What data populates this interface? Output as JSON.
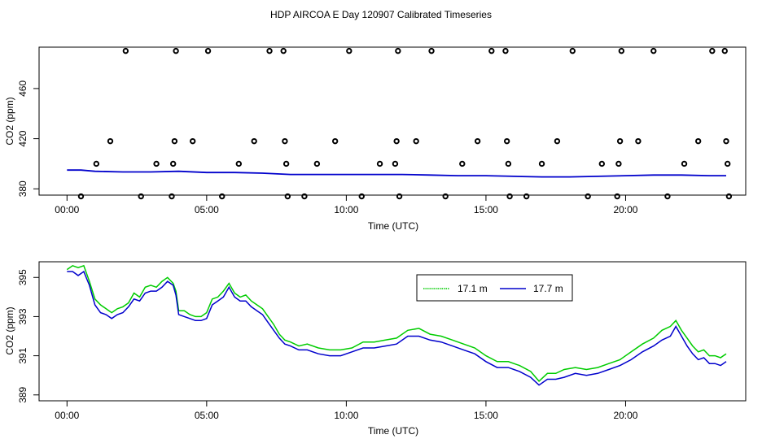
{
  "chart_data": [
    {
      "type": "scatter",
      "title": "HDP AIRCOA E  Day 120907  Calibrated Timeseries",
      "xlabel": "Time (UTC)",
      "ylabel": "CO2 (ppm)",
      "x_tick_labels": [
        "00:00",
        "05:00",
        "10:00",
        "15:00",
        "20:00"
      ],
      "x_ticks_hours": [
        0,
        5,
        10,
        15,
        20
      ],
      "y_tick_labels": [
        "380",
        "420",
        "460"
      ],
      "y_ticks": [
        380,
        420,
        460
      ],
      "xlim_hours": [
        -1.0,
        24.3
      ],
      "ylim": [
        375,
        493
      ],
      "grid": false,
      "calibration_points": {
        "x": [
          0.5,
          1.05,
          1.55,
          2.1,
          2.65,
          3.2,
          3.75,
          3.8,
          3.85,
          3.9,
          4.5,
          5.05,
          5.55,
          6.15,
          6.7,
          7.25,
          7.75,
          7.8,
          7.85,
          7.9,
          8.5,
          8.95,
          9.6,
          10.1,
          10.55,
          11.2,
          11.75,
          11.8,
          11.85,
          11.9,
          12.5,
          13.05,
          13.55,
          14.15,
          14.7,
          15.2,
          15.7,
          15.75,
          15.8,
          15.85,
          16.45,
          17.0,
          17.55,
          18.1,
          18.65,
          19.15,
          19.7,
          19.75,
          19.8,
          19.85,
          20.45,
          21.0,
          21.5,
          22.1,
          22.6,
          23.1,
          23.55,
          23.6,
          23.65,
          23.7
        ],
        "y": [
          374,
          400,
          418,
          490,
          374,
          400,
          374,
          400,
          418,
          490,
          418,
          490,
          374,
          400,
          418,
          490,
          490,
          418,
          400,
          374,
          374,
          400,
          418,
          490,
          374,
          400,
          400,
          418,
          490,
          374,
          418,
          490,
          374,
          400,
          418,
          490,
          490,
          418,
          400,
          374,
          374,
          400,
          418,
          490,
          374,
          400,
          374,
          400,
          418,
          490,
          418,
          490,
          374,
          400,
          418,
          490,
          490,
          418,
          400,
          374
        ]
      },
      "series": [
        {
          "name": "",
          "color": "#0000cc",
          "x": [
            0,
            0.5,
            1.0,
            2.0,
            3.0,
            4.0,
            5.0,
            6.0,
            7.0,
            8.0,
            9.0,
            10.0,
            11.0,
            12.0,
            13.0,
            14.0,
            15.0,
            16.0,
            17.0,
            18.0,
            19.0,
            20.0,
            21.0,
            22.0,
            23.0,
            23.6
          ],
          "values": [
            395,
            395,
            394,
            393.5,
            393.5,
            394,
            393,
            393,
            392.5,
            391.5,
            391.5,
            391.5,
            391.5,
            391.5,
            391,
            390.5,
            390.5,
            390,
            389.5,
            389.5,
            390,
            390.5,
            391,
            391,
            390.5,
            390.5
          ]
        }
      ]
    },
    {
      "type": "line",
      "title": "",
      "xlabel": "Time (UTC)",
      "ylabel": "CO2 (ppm)",
      "x_tick_labels": [
        "00:00",
        "05:00",
        "10:00",
        "15:00",
        "20:00"
      ],
      "x_ticks_hours": [
        0,
        5,
        10,
        15,
        20
      ],
      "y_tick_labels": [
        "389",
        "391",
        "393",
        "395"
      ],
      "y_ticks": [
        389,
        391,
        393,
        395
      ],
      "xlim_hours": [
        -1.0,
        24.3
      ],
      "ylim": [
        388.7,
        395.8
      ],
      "grid": false,
      "legend_position": "top-right",
      "x": [
        0,
        0.2,
        0.4,
        0.6,
        0.8,
        1.0,
        1.2,
        1.4,
        1.6,
        1.8,
        2.0,
        2.2,
        2.4,
        2.6,
        2.8,
        3.0,
        3.2,
        3.4,
        3.6,
        3.8,
        3.9,
        4.0,
        4.2,
        4.4,
        4.6,
        4.8,
        5.0,
        5.2,
        5.4,
        5.6,
        5.8,
        6.0,
        6.2,
        6.4,
        6.6,
        6.8,
        7.0,
        7.2,
        7.4,
        7.6,
        7.8,
        8.0,
        8.3,
        8.6,
        9.0,
        9.4,
        9.8,
        10.2,
        10.6,
        11.0,
        11.4,
        11.8,
        12.2,
        12.6,
        13.0,
        13.4,
        13.8,
        14.2,
        14.6,
        15.0,
        15.4,
        15.8,
        16.2,
        16.6,
        16.9,
        17.2,
        17.5,
        17.8,
        18.2,
        18.6,
        19.0,
        19.4,
        19.8,
        20.2,
        20.6,
        21.0,
        21.3,
        21.6,
        21.8,
        22.0,
        22.2,
        22.4,
        22.6,
        22.8,
        23.0,
        23.2,
        23.4,
        23.6
      ],
      "series": [
        {
          "name": "17.1 m",
          "color": "#00cc00",
          "values": [
            395.4,
            395.6,
            395.5,
            395.6,
            394.8,
            393.9,
            393.6,
            393.4,
            393.2,
            393.4,
            393.5,
            393.7,
            394.2,
            394.0,
            394.5,
            394.6,
            394.5,
            394.8,
            395.0,
            394.7,
            394.3,
            393.3,
            393.3,
            393.1,
            393.0,
            393.0,
            393.2,
            393.9,
            394.0,
            394.3,
            394.7,
            394.2,
            394.0,
            394.1,
            393.8,
            393.6,
            393.4,
            393.0,
            392.6,
            392.1,
            391.8,
            391.7,
            391.5,
            391.6,
            391.4,
            391.3,
            391.3,
            391.4,
            391.7,
            391.7,
            391.8,
            391.9,
            392.3,
            392.4,
            392.1,
            392.0,
            391.8,
            391.6,
            391.4,
            391.0,
            390.7,
            390.7,
            390.5,
            390.2,
            389.7,
            390.1,
            390.1,
            390.3,
            390.4,
            390.3,
            390.4,
            390.6,
            390.8,
            391.2,
            391.6,
            391.9,
            392.3,
            392.5,
            392.8,
            392.3,
            391.9,
            391.5,
            391.2,
            391.3,
            391.0,
            391.0,
            390.9,
            391.1
          ]
        },
        {
          "name": "17.7 m",
          "color": "#0000cc",
          "values": [
            395.3,
            395.3,
            395.1,
            395.3,
            394.6,
            393.6,
            393.2,
            393.1,
            392.9,
            393.1,
            393.2,
            393.5,
            393.9,
            393.8,
            394.2,
            394.3,
            394.3,
            394.5,
            394.8,
            394.6,
            394.1,
            393.1,
            393.0,
            392.9,
            392.8,
            392.8,
            392.9,
            393.6,
            393.8,
            394.0,
            394.5,
            394.0,
            393.8,
            393.8,
            393.5,
            393.3,
            393.1,
            392.7,
            392.3,
            391.9,
            391.6,
            391.5,
            391.3,
            391.3,
            391.1,
            391.0,
            391.0,
            391.2,
            391.4,
            391.4,
            391.5,
            391.6,
            392.0,
            392.0,
            391.8,
            391.7,
            391.5,
            391.3,
            391.1,
            390.7,
            390.4,
            390.4,
            390.2,
            389.9,
            389.5,
            389.8,
            389.8,
            389.9,
            390.1,
            390.0,
            390.1,
            390.3,
            390.5,
            390.8,
            391.2,
            391.5,
            391.8,
            392.0,
            392.5,
            392.0,
            391.5,
            391.1,
            390.8,
            390.9,
            390.6,
            390.6,
            390.5,
            390.7
          ]
        }
      ]
    }
  ]
}
